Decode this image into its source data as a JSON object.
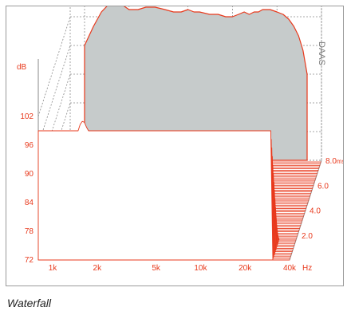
{
  "caption": "Waterfall",
  "chart_data": {
    "type": "area",
    "brand": "DAAS",
    "y_unit": "dB",
    "x_unit": "Hz",
    "z_unit": "ms",
    "x_ticks": [
      "1k",
      "2k",
      "5k",
      "10k",
      "20k",
      "40k"
    ],
    "x_tick_values": [
      1000,
      2000,
      5000,
      10000,
      20000,
      40000
    ],
    "y_ticks": [
      "72",
      "78",
      "84",
      "90",
      "96",
      "102"
    ],
    "y_tick_values": [
      72,
      78,
      84,
      90,
      96,
      102
    ],
    "z_ticks": [
      "2.0",
      "4.0",
      "6.0",
      "8.0"
    ],
    "z_tick_values": [
      2.0,
      4.0,
      6.0,
      8.0
    ],
    "xlim": [
      800,
      40000
    ],
    "ylim": [
      72,
      108
    ],
    "zlim": [
      0,
      8.0
    ],
    "grid": true,
    "colors": {
      "trace": "#e8391c",
      "fill": "#c6cbcb",
      "grid": "#8a8a8a",
      "axis_text": "#e8391c",
      "brand_text": "#777777",
      "frame": "#9a9a9a"
    },
    "series": [
      {
        "time_ms": 0.0,
        "x": [
          1000,
          1150,
          1300,
          1500,
          1700,
          2000,
          2300,
          2600,
          3000,
          3500,
          4000,
          4500,
          5000,
          5500,
          6000,
          7000,
          8000,
          9000,
          10000,
          11000,
          12000,
          13000,
          14000,
          15000,
          16000,
          18000,
          20000,
          22000,
          24000,
          26000,
          28000,
          30000,
          32000
        ],
        "y": [
          96,
          100,
          103,
          105,
          105,
          103.5,
          103.5,
          104,
          104,
          103.5,
          103,
          103,
          103.5,
          103,
          103,
          102.5,
          102.5,
          102,
          102,
          102.5,
          103,
          102.5,
          103,
          103,
          103.5,
          103.5,
          103,
          102.5,
          101.5,
          100,
          98,
          95,
          90
        ]
      }
    ]
  }
}
